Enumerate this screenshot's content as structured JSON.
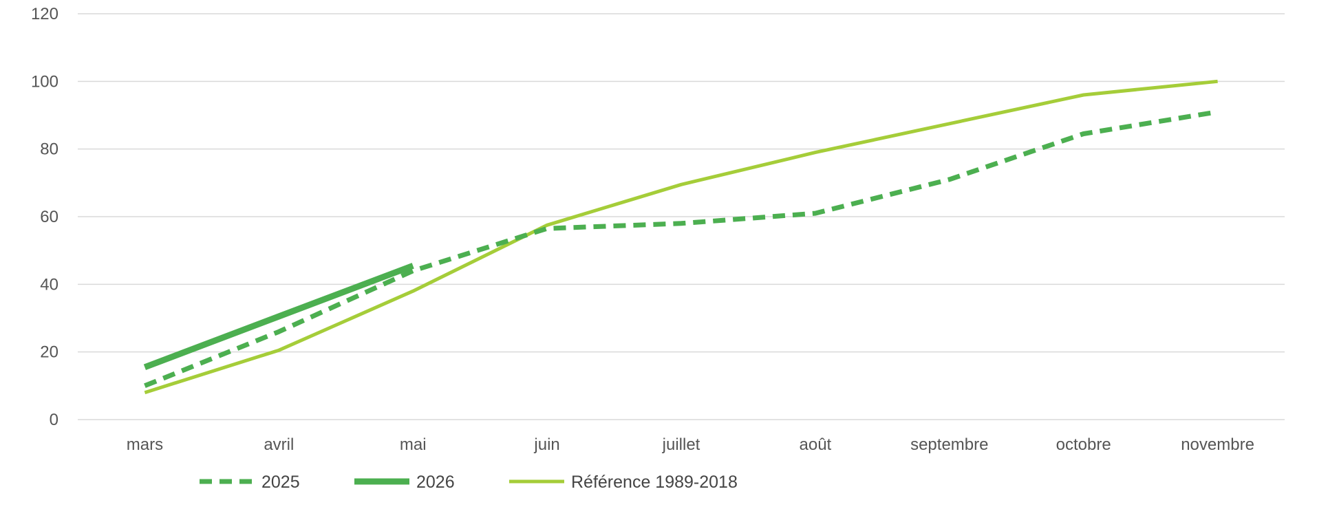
{
  "chart_data": {
    "type": "line",
    "title": "",
    "xlabel": "",
    "ylabel": "",
    "categories": [
      "mars",
      "avril",
      "mai",
      "juin",
      "juillet",
      "août",
      "septembre",
      "octobre",
      "novembre"
    ],
    "ylim": [
      0,
      120
    ],
    "yticks": [
      0,
      20,
      40,
      60,
      80,
      100,
      120
    ],
    "grid": true,
    "legend_position": "bottom-left",
    "series": [
      {
        "name": "2025",
        "style": "dashed",
        "color": "#4caf50",
        "values": [
          10,
          26,
          44,
          56.5,
          58,
          61,
          71,
          84.5,
          91
        ]
      },
      {
        "name": "2026",
        "style": "solid-thick",
        "color": "#4caf50",
        "values": [
          15.5,
          30.5,
          45.5,
          null,
          null,
          null,
          null,
          null,
          null
        ]
      },
      {
        "name": "Référence 1989-2018",
        "style": "solid",
        "color": "#a5cd39",
        "values": [
          8,
          20.5,
          38,
          57.5,
          69.5,
          79,
          87.5,
          96,
          100
        ]
      }
    ]
  }
}
